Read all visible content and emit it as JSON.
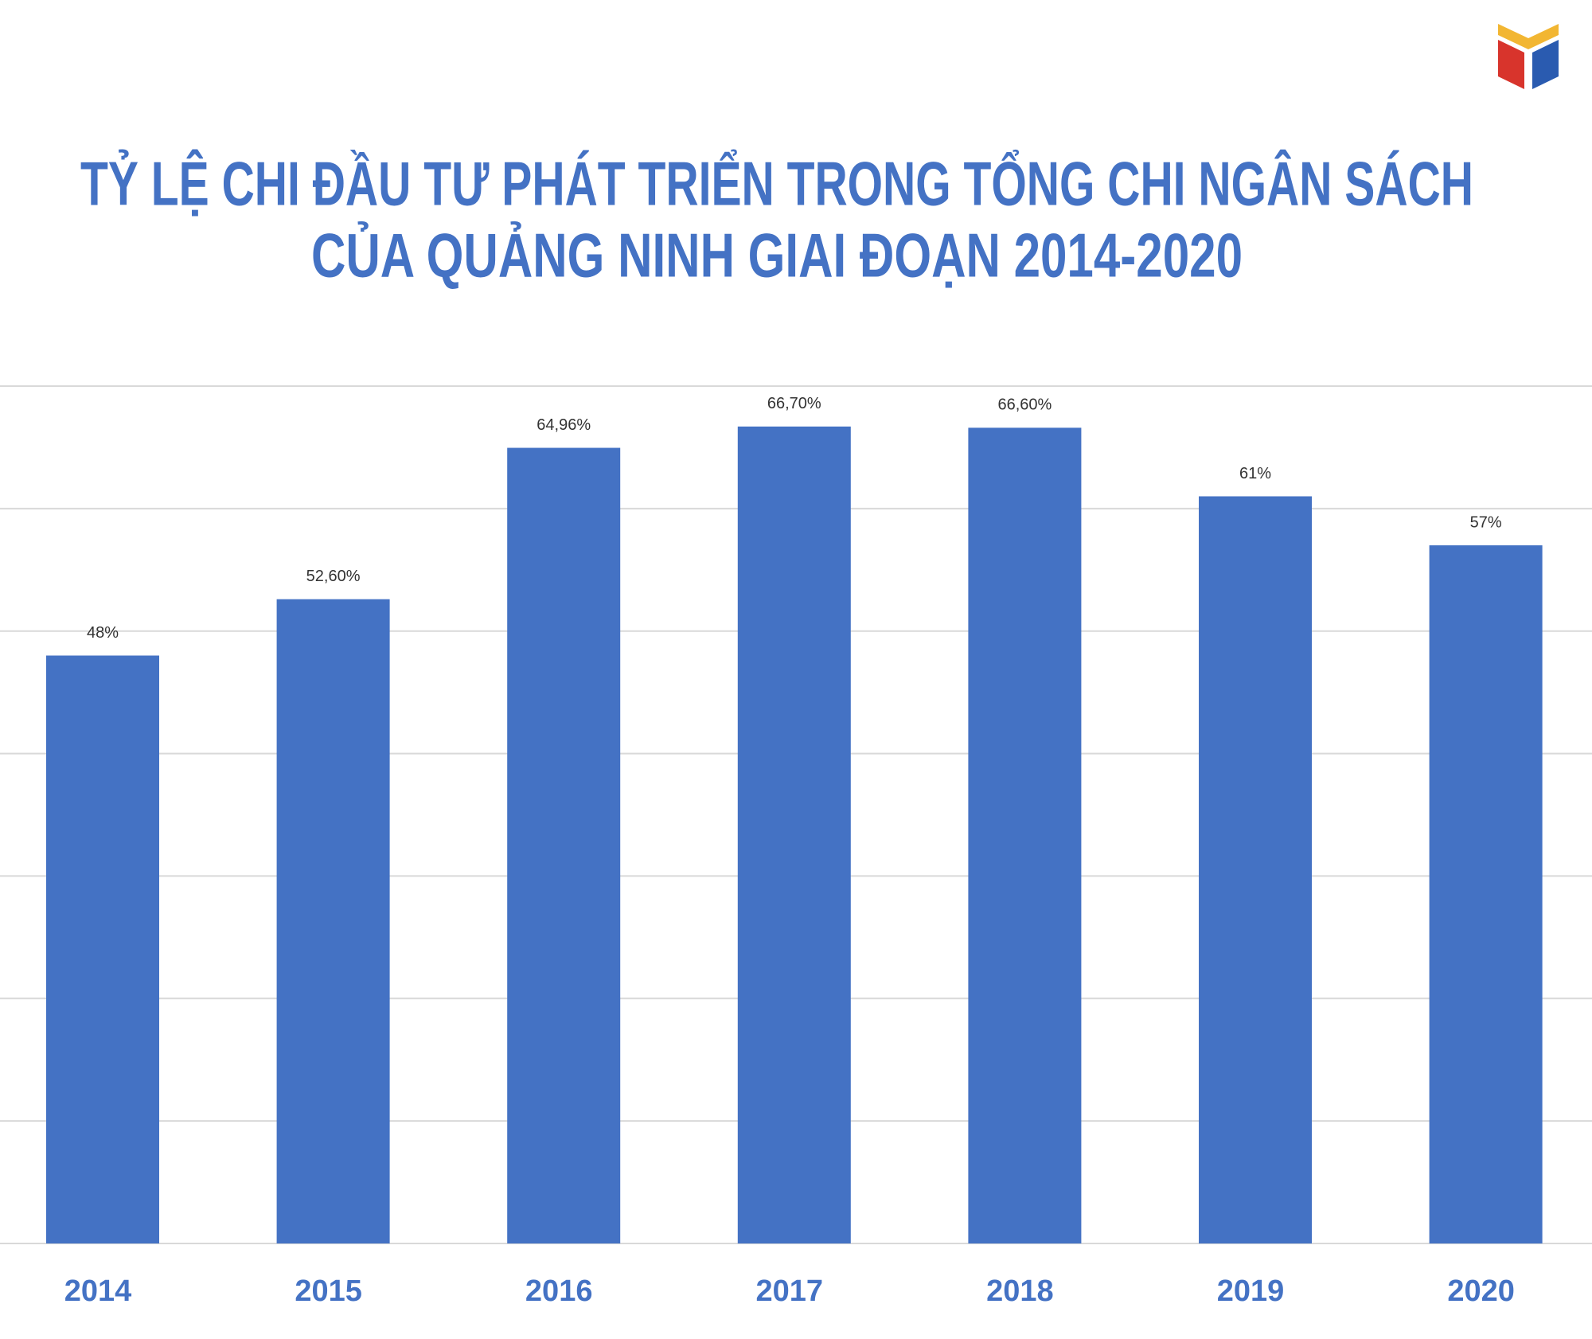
{
  "chart_data": {
    "type": "bar",
    "title": [
      "TỶ LỆ CHI ĐẦU TƯ PHÁT TRIỂN TRONG TỔNG CHI NGÂN SÁCH",
      "CỦA QUẢNG NINH GIAI ĐOẠN 2014-2020"
    ],
    "categories": [
      "2014",
      "2015",
      "2016",
      "2017",
      "2018",
      "2019",
      "2020"
    ],
    "values": [
      48,
      52.6,
      64.96,
      66.7,
      66.6,
      61,
      57
    ],
    "value_labels": [
      "48%",
      "52,60%",
      "64,96%",
      "66,70%",
      "66,60%",
      "61%",
      "57%"
    ],
    "color": "#4472c4",
    "ylim": [
      0,
      70
    ],
    "yticks": [
      0,
      10,
      20,
      30,
      40,
      50,
      60,
      70
    ],
    "grid": true
  }
}
